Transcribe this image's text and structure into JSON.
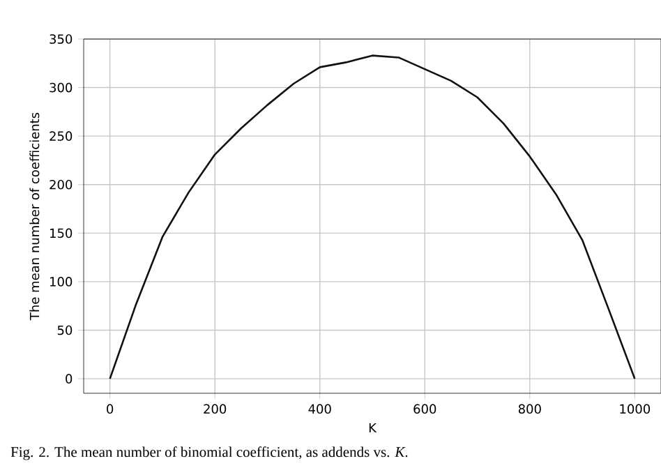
{
  "chart_data": {
    "type": "line",
    "xlabel": "K",
    "ylabel": "The mean number of coefficients",
    "x": [
      0,
      50,
      100,
      150,
      200,
      250,
      300,
      350,
      400,
      450,
      500,
      550,
      600,
      650,
      700,
      750,
      800,
      850,
      900,
      950,
      1000
    ],
    "series": [
      {
        "color": "#111111",
        "values": [
          0,
          77,
          146,
          192,
          231,
          258,
          282,
          304,
          321,
          326,
          333,
          331,
          319,
          307,
          290,
          263,
          229,
          190,
          143,
          72,
          0
        ]
      }
    ],
    "xlim": [
      -50,
      1050
    ],
    "ylim": [
      -15,
      350
    ],
    "xticks": [
      0,
      200,
      400,
      600,
      800,
      1000
    ],
    "yticks": [
      0,
      50,
      100,
      150,
      200,
      250,
      300,
      350
    ],
    "grid": true,
    "marker": "none",
    "line_style": "solid",
    "annotations": [
      "Fig. 2. The mean number of binomial coefficient, as addends vs. *K*."
    ]
  }
}
